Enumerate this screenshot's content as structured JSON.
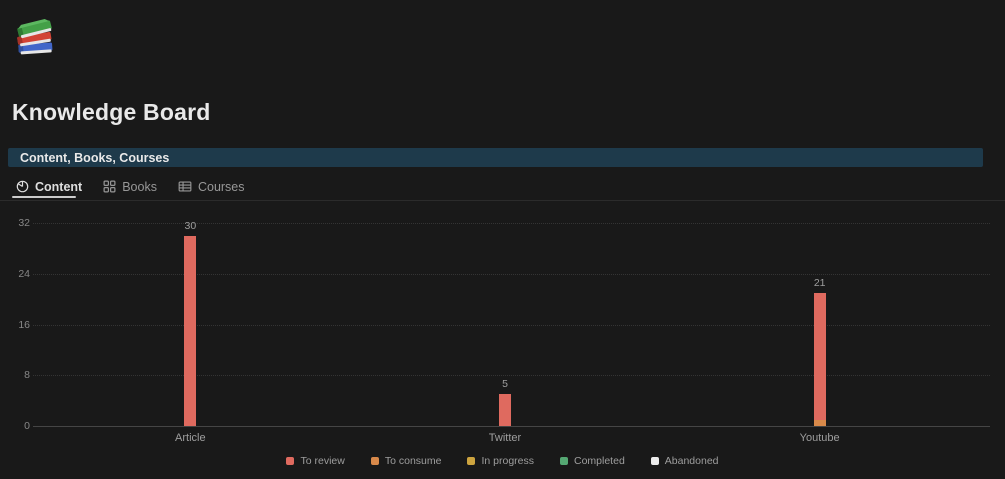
{
  "page": {
    "title": "Knowledge Board",
    "icon": "books-emoji"
  },
  "callout": {
    "text": "Content, Books, Courses",
    "background": "#1e3a4b"
  },
  "tabs": [
    {
      "label": "Content",
      "icon": "pie-chart-icon",
      "active": true
    },
    {
      "label": "Books",
      "icon": "grid-icon",
      "active": false
    },
    {
      "label": "Courses",
      "icon": "table-icon",
      "active": false
    }
  ],
  "chart_data": {
    "type": "bar",
    "stacked": true,
    "title": "",
    "categories": [
      "Article",
      "Twitter",
      "Youtube"
    ],
    "series": [
      {
        "name": "To review",
        "color": "#df6a5f",
        "values": [
          30,
          5,
          20
        ]
      },
      {
        "name": "To consume",
        "color": "#d8894a",
        "values": [
          0,
          0,
          1
        ]
      },
      {
        "name": "In progress",
        "color": "#cda43f",
        "values": [
          0,
          0,
          0
        ]
      },
      {
        "name": "Completed",
        "color": "#55a873",
        "values": [
          0,
          0,
          0
        ]
      },
      {
        "name": "Abandoned",
        "color": "#ececec",
        "values": [
          0,
          0,
          0
        ]
      }
    ],
    "totals": [
      30,
      5,
      21
    ],
    "y_ticks": [
      0,
      8,
      16,
      24,
      32
    ],
    "ylim": [
      0,
      32
    ],
    "xlabel": "",
    "ylabel": "",
    "grid": "dotted-horizontal",
    "legend_position": "bottom"
  }
}
